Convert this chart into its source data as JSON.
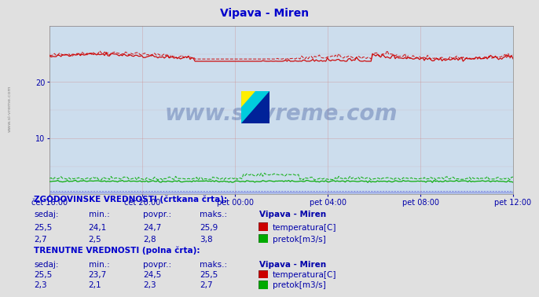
{
  "title": "Vipava - Miren",
  "title_color": "#0000cc",
  "bg_color": "#ccdded",
  "outer_bg_color": "#e0e0e0",
  "x_labels": [
    "čet 16:00",
    "čet 20:00",
    "pet 00:00",
    "pet 04:00",
    "pet 08:00",
    "pet 12:00"
  ],
  "x_ticks_count": 6,
  "y_min": 0,
  "y_max": 30,
  "y_ticks": [
    10,
    20
  ],
  "grid_color": "#cc8888",
  "temp_color": "#cc0000",
  "flow_color": "#00aa00",
  "blue_color": "#0000cc",
  "watermark": "www.si-vreme.com",
  "watermark_color": "#1a3a8a",
  "watermark_alpha": 0.3,
  "info_text_color": "#0000cc",
  "label_color": "#0000aa",
  "hist_temp_sedaj": "25,5",
  "hist_temp_min": "24,1",
  "hist_temp_povpr": "24,7",
  "hist_temp_maks": "25,9",
  "hist_flow_sedaj": "2,7",
  "hist_flow_min": "2,5",
  "hist_flow_povpr": "2,8",
  "hist_flow_maks": "3,8",
  "curr_temp_sedaj": "25,5",
  "curr_temp_min": "23,7",
  "curr_temp_povpr": "24,5",
  "curr_temp_maks": "25,5",
  "curr_flow_sedaj": "2,3",
  "curr_flow_min": "2,1",
  "curr_flow_povpr": "2,3",
  "curr_flow_maks": "2,7",
  "n_points": 288,
  "temp_hist_avg": 24.7,
  "temp_hist_min_v": 24.1,
  "temp_hist_max_v": 25.9,
  "temp_curr_avg": 24.5,
  "temp_curr_min_v": 23.7,
  "temp_curr_max_v": 25.5,
  "flow_hist_avg": 2.8,
  "flow_hist_min_v": 2.5,
  "flow_hist_max_v": 3.8,
  "flow_curr_avg": 2.3,
  "flow_curr_min_v": 2.1,
  "flow_curr_max_v": 2.7
}
